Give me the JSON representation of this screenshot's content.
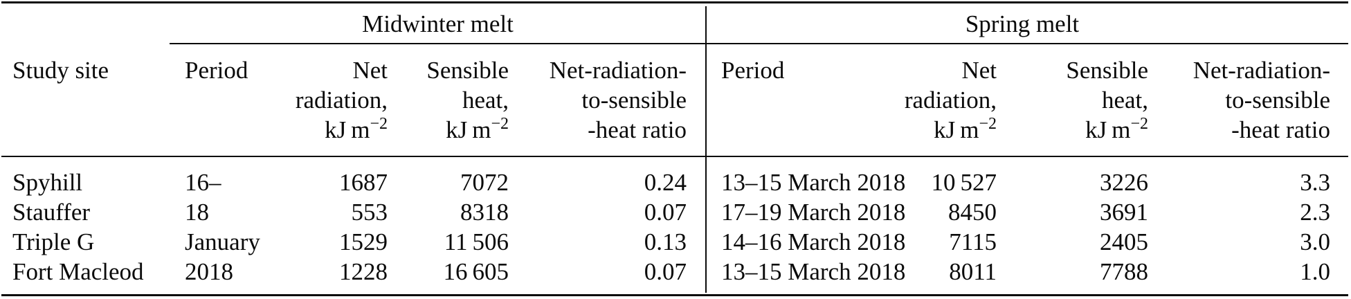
{
  "table": {
    "row_header": "Study site",
    "groups": {
      "midwinter": {
        "title": "Midwinter melt"
      },
      "spring": {
        "title": "Spring melt"
      }
    },
    "columns": {
      "period": "Period",
      "net_radiation": {
        "line1": "Net",
        "line2": "radiation,"
      },
      "sensible_heat": {
        "line1": "Sensible",
        "line2": "heat,"
      },
      "unit": {
        "base": "kJ m",
        "sup": "−2"
      },
      "ratio": {
        "line1": "Net-radiation-",
        "line2": "to-sensible",
        "line3": "-heat ratio"
      }
    },
    "rows": [
      {
        "site": "Spyhill",
        "mw_period": "16–",
        "mw_net": "1687",
        "mw_sens": "7072",
        "mw_ratio": "0.24",
        "sp_period": "13–15 March 2018",
        "sp_net": "10 527",
        "sp_sens": "3226",
        "sp_ratio": "3.3"
      },
      {
        "site": "Stauffer",
        "mw_period": "18",
        "mw_net": "553",
        "mw_sens": "8318",
        "mw_ratio": "0.07",
        "sp_period": "17–19 March 2018",
        "sp_net": "8450",
        "sp_sens": "3691",
        "sp_ratio": "2.3"
      },
      {
        "site": "Triple G",
        "mw_period": "January",
        "mw_net": "1529",
        "mw_sens": "11 506",
        "mw_ratio": "0.13",
        "sp_period": "14–16 March 2018",
        "sp_net": "7115",
        "sp_sens": "2405",
        "sp_ratio": "3.0"
      },
      {
        "site": "Fort Macleod",
        "mw_period": "2018",
        "mw_net": "1228",
        "mw_sens": "16 605",
        "mw_ratio": "0.07",
        "sp_period": "13–15 March 2018",
        "sp_net": "8011",
        "sp_sens": "7788",
        "sp_ratio": "1.0"
      }
    ]
  }
}
